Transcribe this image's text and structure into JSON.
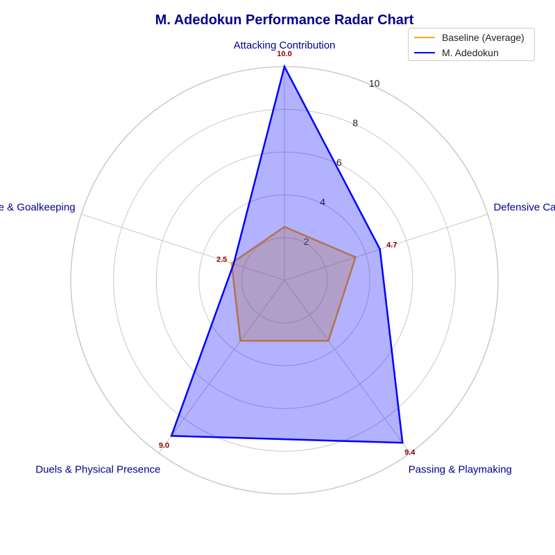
{
  "chart_data": {
    "type": "radar",
    "title": "M. Adedokun Performance Radar Chart",
    "categories": [
      "Attacking Contribution",
      "Defensive Capability",
      "Passing & Playmaking",
      "Duels & Physical Presence",
      "Discipline & Goalkeeping"
    ],
    "rlim": [
      0,
      10
    ],
    "r_ticks": [
      2,
      4,
      6,
      8,
      10
    ],
    "grid": true,
    "legend_position": "top-right",
    "series": [
      {
        "name": "Baseline (Average)",
        "color": "#ffa500",
        "values": [
          2.5,
          3.5,
          3.5,
          3.5,
          2.6
        ]
      },
      {
        "name": "M. Adedokun",
        "color": "#0000ff",
        "values": [
          10.0,
          4.7,
          9.4,
          9.0,
          2.5
        ],
        "data_labels": [
          "10.0",
          "4.7",
          "9.4",
          "9.0",
          "2.5"
        ]
      }
    ],
    "data_label_color": "#8b0000",
    "category_label_color": "#00008b"
  }
}
